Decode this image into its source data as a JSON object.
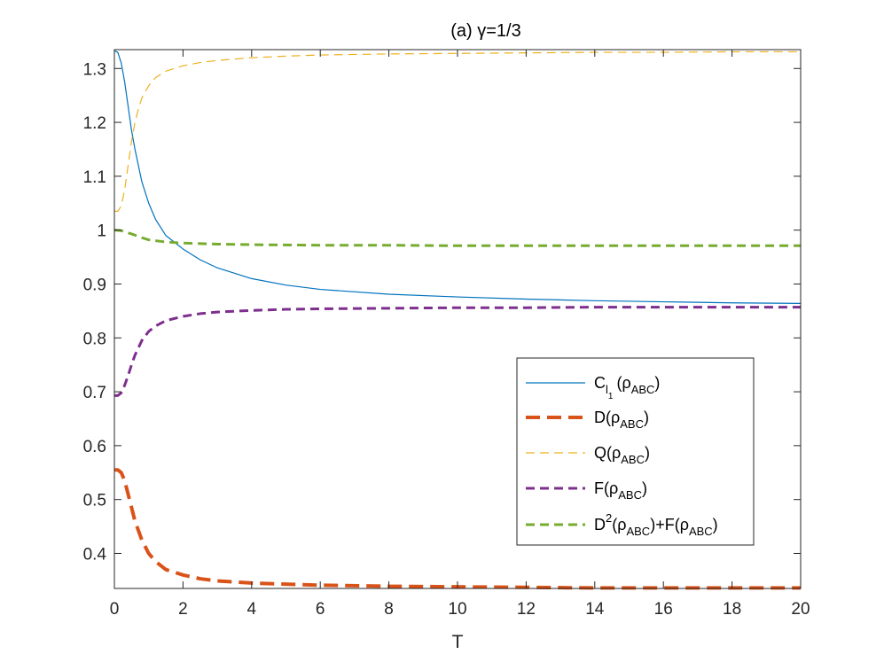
{
  "chart_data": {
    "type": "line",
    "title": "(a)    γ=1/3",
    "xlabel": "T",
    "ylabel": "",
    "xlim": [
      0,
      20
    ],
    "ylim": [
      0.335,
      1.335
    ],
    "xticks": [
      "0",
      "2",
      "4",
      "6",
      "8",
      "10",
      "12",
      "14",
      "16",
      "18",
      "20"
    ],
    "yticks": [
      "0.4",
      "0.5",
      "0.6",
      "0.7",
      "0.8",
      "0.9",
      "1",
      "1.1",
      "1.2",
      "1.3"
    ],
    "grid": false,
    "legend_position": "center-right",
    "series": [
      {
        "name": "C_{l_1}(ρ_{ABC})",
        "color": "#0072BD",
        "style": "solid-thin",
        "x": [
          0,
          0.1,
          0.2,
          0.3,
          0.4,
          0.5,
          0.6,
          0.8,
          1.0,
          1.2,
          1.5,
          2.0,
          2.5,
          3.0,
          4.0,
          5.0,
          6.0,
          8.0,
          10.0,
          12.0,
          14.0,
          16.0,
          18.0,
          20.0
        ],
        "y": [
          1.333,
          1.33,
          1.31,
          1.275,
          1.23,
          1.185,
          1.15,
          1.09,
          1.05,
          1.02,
          0.99,
          0.965,
          0.945,
          0.93,
          0.91,
          0.898,
          0.89,
          0.881,
          0.876,
          0.872,
          0.869,
          0.867,
          0.865,
          0.864
        ]
      },
      {
        "name": "D(ρ_{ABC})",
        "color": "#D95319",
        "style": "dashed-thick",
        "x": [
          0,
          0.1,
          0.2,
          0.3,
          0.4,
          0.5,
          0.6,
          0.8,
          1.0,
          1.2,
          1.5,
          2.0,
          2.5,
          3.0,
          4.0,
          5.0,
          6.0,
          8.0,
          10.0,
          12.0,
          14.0,
          16.0,
          18.0,
          20.0
        ],
        "y": [
          0.555,
          0.555,
          0.55,
          0.535,
          0.51,
          0.485,
          0.46,
          0.425,
          0.4,
          0.385,
          0.37,
          0.36,
          0.353,
          0.349,
          0.345,
          0.343,
          0.341,
          0.339,
          0.338,
          0.337,
          0.336,
          0.336,
          0.336,
          0.336
        ]
      },
      {
        "name": "Q(ρ_{ABC})",
        "color": "#EDB120",
        "style": "dashed-thin",
        "x": [
          0,
          0.1,
          0.2,
          0.3,
          0.4,
          0.5,
          0.6,
          0.7,
          0.8,
          1.0,
          1.2,
          1.5,
          2.0,
          2.5,
          3.0,
          4.0,
          5.0,
          6.0,
          8.0,
          10.0,
          12.0,
          14.0,
          16.0,
          18.0,
          20.0
        ],
        "y": [
          1.035,
          1.035,
          1.045,
          1.075,
          1.12,
          1.165,
          1.2,
          1.225,
          1.245,
          1.268,
          1.283,
          1.295,
          1.305,
          1.311,
          1.315,
          1.32,
          1.323,
          1.325,
          1.327,
          1.328,
          1.329,
          1.33,
          1.33,
          1.331,
          1.331
        ]
      },
      {
        "name": "F(ρ_{ABC})",
        "color": "#7E2F8E",
        "style": "dashed-medium",
        "x": [
          0,
          0.1,
          0.2,
          0.3,
          0.4,
          0.5,
          0.6,
          0.8,
          1.0,
          1.2,
          1.5,
          2.0,
          2.5,
          3.0,
          4.0,
          5.0,
          6.0,
          8.0,
          10.0,
          12.0,
          14.0,
          16.0,
          18.0,
          20.0
        ],
        "y": [
          0.693,
          0.693,
          0.698,
          0.712,
          0.73,
          0.75,
          0.768,
          0.795,
          0.812,
          0.822,
          0.832,
          0.84,
          0.845,
          0.848,
          0.851,
          0.853,
          0.854,
          0.855,
          0.856,
          0.856,
          0.857,
          0.857,
          0.857,
          0.857
        ]
      },
      {
        "name": "D^2(ρ_{ABC})+F(ρ_{ABC})",
        "color": "#77AC30",
        "style": "dashed-medium",
        "x": [
          0,
          0.2,
          0.5,
          0.8,
          1.0,
          1.5,
          2.0,
          3.0,
          4.0,
          6.0,
          8.0,
          10.0,
          12.0,
          14.0,
          16.0,
          18.0,
          20.0
        ],
        "y": [
          1.0,
          0.999,
          0.993,
          0.986,
          0.982,
          0.978,
          0.976,
          0.974,
          0.973,
          0.972,
          0.972,
          0.971,
          0.971,
          0.971,
          0.971,
          0.971,
          0.971
        ]
      }
    ]
  },
  "legend": {
    "entries": [
      {
        "main": "C",
        "sub1": "l",
        "sub2": "1",
        "open": "(ρ",
        "sub3": "ABC",
        "close": ")"
      },
      {
        "main": "D(ρ",
        "sub": "ABC",
        "close": ")"
      },
      {
        "main": "Q(ρ",
        "sub": "ABC",
        "close": ")"
      },
      {
        "main": "F(ρ",
        "sub": "ABC",
        "close": ")"
      },
      {
        "main": "D",
        "sup": "2",
        "open": "(ρ",
        "sub": "ABC",
        "mid": ")+F(ρ",
        "sub2": "ABC",
        "close": ")"
      }
    ]
  }
}
